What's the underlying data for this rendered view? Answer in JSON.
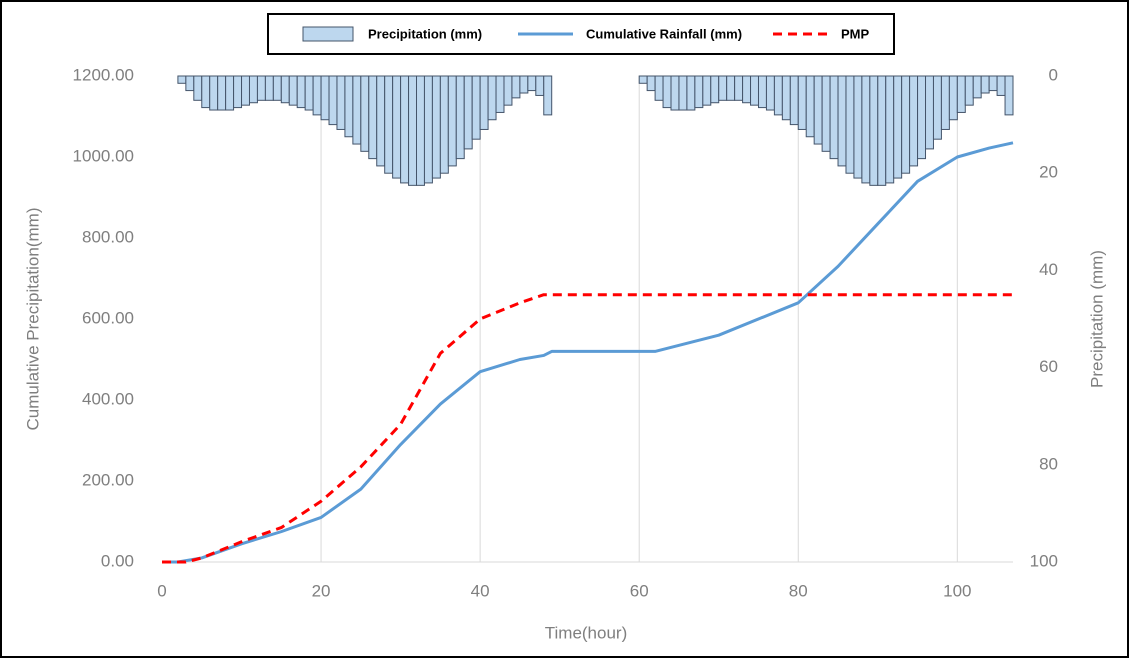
{
  "chart_data": {
    "type": "combo",
    "legend": {
      "position": "top"
    },
    "xlabel": "Time(hour)",
    "ylabel": "Cumulative Precipitation(mm)",
    "y2label": "Precipitation (mm)",
    "xlim": [
      0,
      107
    ],
    "xticks": [
      0,
      20,
      40,
      60,
      80,
      100
    ],
    "ylim": [
      0,
      1200
    ],
    "yticks": [
      {
        "value": 0,
        "label": "0.00"
      },
      {
        "value": 200,
        "label": "200.00"
      },
      {
        "value": 400,
        "label": "400.00"
      },
      {
        "value": 600,
        "label": "600.00"
      },
      {
        "value": 800,
        "label": "800.00"
      },
      {
        "value": 1000,
        "label": "1000.00"
      },
      {
        "value": 1200,
        "label": "1200.00"
      }
    ],
    "y2lim": [
      100,
      0
    ],
    "y2ticks": [
      0,
      20,
      40,
      60,
      80,
      100
    ],
    "grid": "x",
    "series": [
      {
        "name": "Precipitation (mm)",
        "type": "bar",
        "axis": "y2",
        "color": "#bdd7ee",
        "x": [
          2,
          3,
          4,
          5,
          6,
          7,
          8,
          9,
          10,
          11,
          12,
          13,
          14,
          15,
          16,
          17,
          18,
          19,
          20,
          21,
          22,
          23,
          24,
          25,
          26,
          27,
          28,
          29,
          30,
          31,
          32,
          33,
          34,
          35,
          36,
          37,
          38,
          39,
          40,
          41,
          42,
          43,
          44,
          45,
          46,
          47,
          48,
          60,
          61,
          62,
          63,
          64,
          65,
          66,
          67,
          68,
          69,
          70,
          71,
          72,
          73,
          74,
          75,
          76,
          77,
          78,
          79,
          80,
          81,
          82,
          83,
          84,
          85,
          86,
          87,
          88,
          89,
          90,
          91,
          92,
          93,
          94,
          95,
          96,
          97,
          98,
          99,
          100,
          101,
          102,
          103,
          104,
          105,
          106
        ],
        "values": [
          1.5,
          3,
          5,
          6.5,
          7,
          7,
          7,
          6.5,
          6,
          5.5,
          5,
          5,
          5,
          5.5,
          6,
          6.5,
          7,
          8,
          9,
          10,
          11,
          12.5,
          14,
          15.5,
          17,
          18.5,
          20,
          21,
          22,
          22.5,
          22.5,
          22,
          21,
          20,
          18.5,
          17,
          15,
          13,
          11,
          9,
          7.5,
          6,
          4.5,
          3.5,
          3,
          4,
          8,
          1.5,
          3,
          5,
          6.5,
          7,
          7,
          7,
          6.5,
          6,
          5.5,
          5,
          5,
          5,
          5.5,
          6,
          6.5,
          7,
          8,
          9,
          10,
          11,
          12.5,
          14,
          15.5,
          17,
          18.5,
          20,
          21,
          22,
          22.5,
          22.5,
          22,
          21,
          20,
          18.5,
          17,
          15,
          13,
          11,
          9,
          7.5,
          6,
          4.5,
          3.5,
          3,
          4,
          8
        ]
      },
      {
        "name": "Cumulative Rainfall (mm)",
        "type": "line",
        "color": "#5b9bd5",
        "x": [
          0,
          2,
          5,
          10,
          15,
          20,
          25,
          30,
          35,
          40,
          45,
          48,
          49,
          62,
          70,
          80,
          85,
          90,
          95,
          100,
          104,
          107
        ],
        "values": [
          0,
          0,
          10,
          45,
          75,
          110,
          180,
          290,
          390,
          470,
          500,
          510,
          520,
          520,
          560,
          640,
          730,
          835,
          940,
          1000,
          1022,
          1035
        ]
      },
      {
        "name": "PMP",
        "type": "line",
        "dash": true,
        "color": "#ff0000",
        "x": [
          0,
          3,
          5,
          10,
          15,
          20,
          25,
          30,
          35,
          40,
          45,
          48,
          107
        ],
        "values": [
          0,
          0,
          10,
          50,
          85,
          150,
          235,
          340,
          515,
          600,
          640,
          660,
          660
        ]
      }
    ]
  }
}
